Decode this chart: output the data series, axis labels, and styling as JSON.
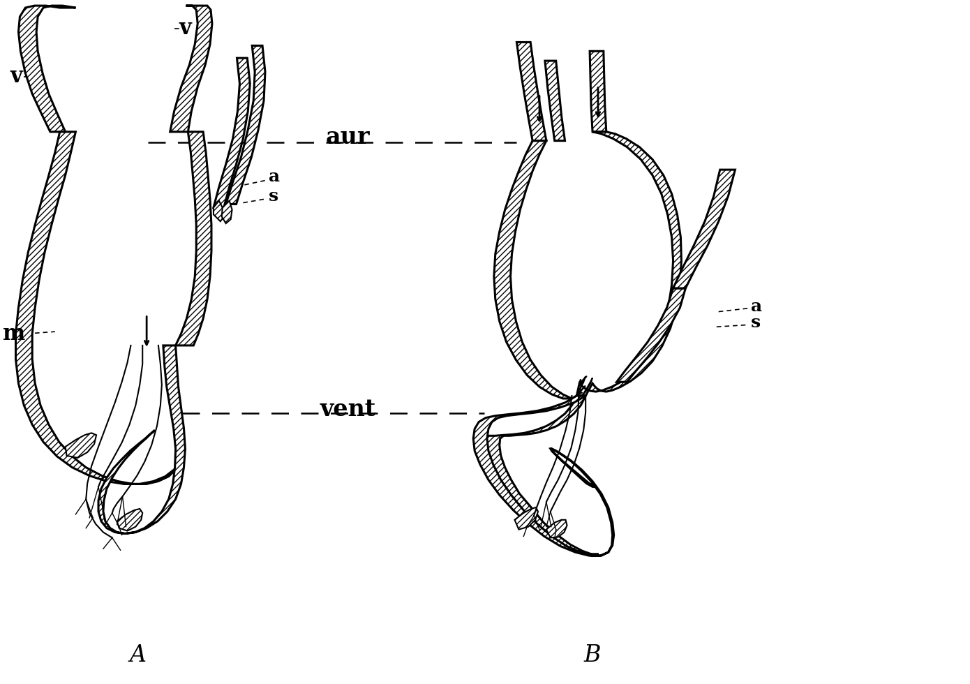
{
  "bg": "#ffffff",
  "lc": "#000000",
  "label_A": "A",
  "label_B": "B",
  "label_aur": "aur",
  "label_vent": "vent",
  "label_v1": "v",
  "label_v2": "v",
  "label_a1": "a",
  "label_s1": "s",
  "label_m": "m",
  "label_a2": "a",
  "label_s2": "s"
}
